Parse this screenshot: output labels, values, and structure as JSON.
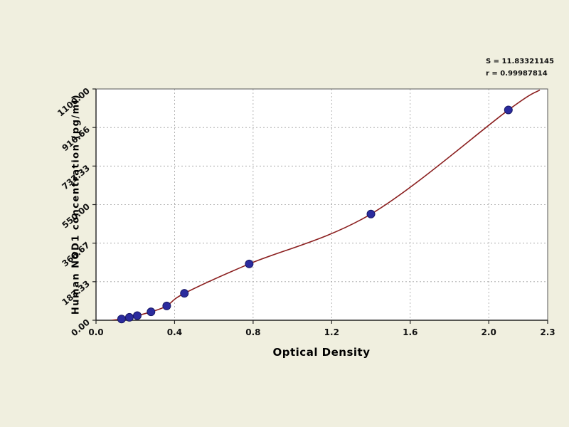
{
  "annotation": {
    "line1": "S = 11.83321145",
    "line2": "r = 0.99987814"
  },
  "chart_data": {
    "type": "scatter",
    "title": "",
    "xlabel": "Optical Density",
    "ylabel": "Human NOD1 concentration (pg/ml)",
    "xlim": [
      0,
      2.3
    ],
    "ylim": [
      0,
      1100
    ],
    "grid": "dashed",
    "legend": "none",
    "x_ticks": [
      0.0,
      0.4,
      0.8,
      1.2,
      1.6,
      2.0,
      2.3
    ],
    "x_tick_labels": [
      "0.0",
      "0.4",
      "0.8",
      "1.2",
      "1.6",
      "2.0",
      "2.3"
    ],
    "y_ticks": [
      0,
      183.33,
      366.67,
      550.0,
      733.33,
      916.66,
      1100.0
    ],
    "y_tick_labels": [
      "0.00",
      "183.33",
      "366.67",
      "550.00",
      "733.33",
      "916.66",
      "1100.00"
    ],
    "points": [
      [
        0.13,
        6
      ],
      [
        0.17,
        14
      ],
      [
        0.21,
        22
      ],
      [
        0.28,
        40
      ],
      [
        0.36,
        68
      ],
      [
        0.45,
        128
      ],
      [
        0.78,
        268
      ],
      [
        1.4,
        505
      ],
      [
        2.1,
        1000
      ]
    ],
    "curve": [
      [
        0.08,
        0
      ],
      [
        0.13,
        6
      ],
      [
        0.17,
        14
      ],
      [
        0.21,
        22
      ],
      [
        0.28,
        40
      ],
      [
        0.36,
        68
      ],
      [
        0.45,
        128
      ],
      [
        0.78,
        268
      ],
      [
        1.4,
        505
      ],
      [
        2.1,
        1000
      ],
      [
        2.26,
        1095
      ]
    ],
    "colors": {
      "background": "#f0efdf",
      "plot_bg": "#ffffff",
      "grid": "#a0a0a0",
      "border": "#555555",
      "axis": "#222222",
      "curve": "#8b1f1f",
      "point_fill": "#2b2b9e",
      "point_stroke": "#191966",
      "tick_text": "#111111"
    }
  }
}
